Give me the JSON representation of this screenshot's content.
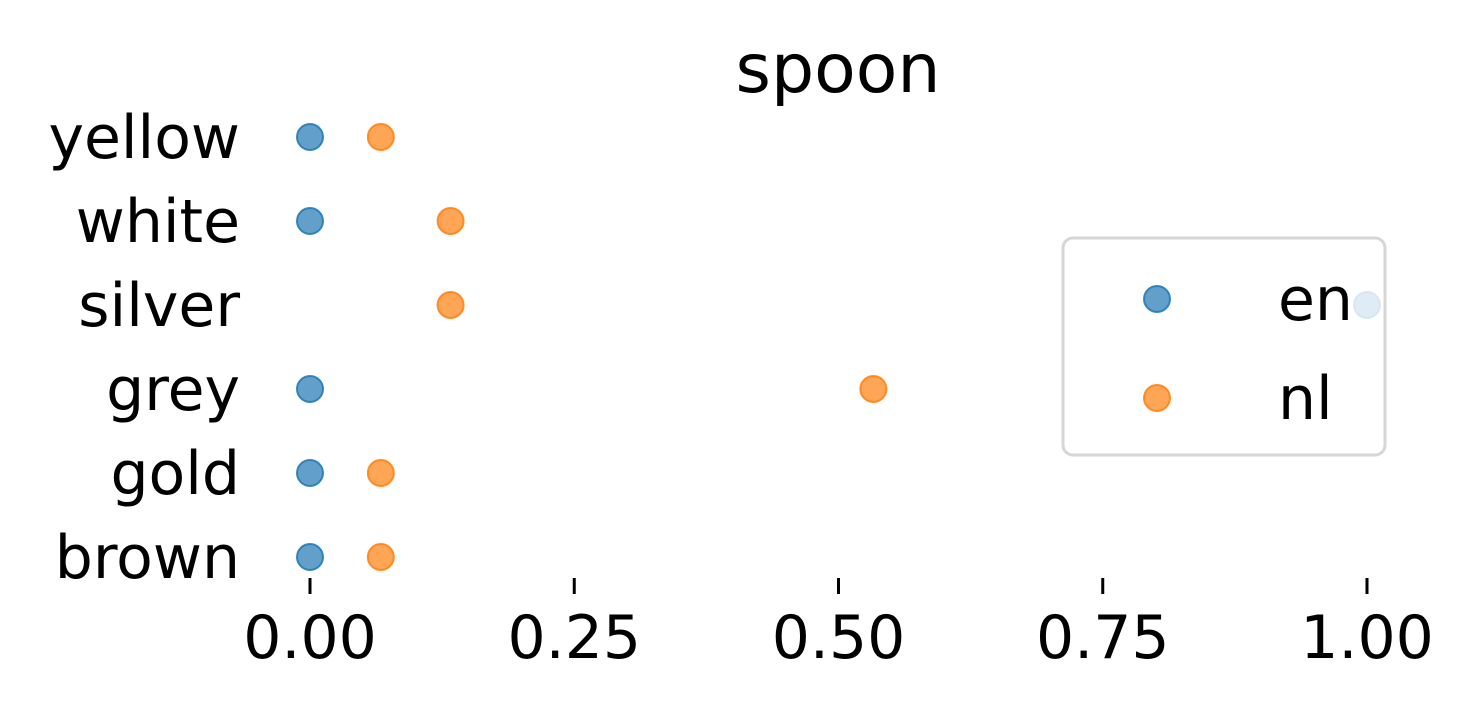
{
  "chart_data": {
    "type": "scatter",
    "title": "spoon",
    "xlabel": "",
    "ylabel": "",
    "categories": [
      "yellow",
      "white",
      "silver",
      "grey",
      "gold",
      "brown"
    ],
    "xlim": [
      0,
      1
    ],
    "xticks": [
      0,
      0.25,
      0.5,
      0.75,
      1
    ],
    "xtick_labels": [
      "0.00",
      "0.25",
      "0.50",
      "0.75",
      "1.00"
    ],
    "series": [
      {
        "name": "en",
        "color": "#1f77b4",
        "values": [
          0,
          0,
          1,
          0,
          0,
          0
        ]
      },
      {
        "name": "nl",
        "color": "#ff7f0e",
        "values": [
          0.067,
          0.133,
          0.133,
          0.533,
          0.067,
          0.067
        ]
      }
    ],
    "grid": false,
    "legend": "center-right"
  }
}
